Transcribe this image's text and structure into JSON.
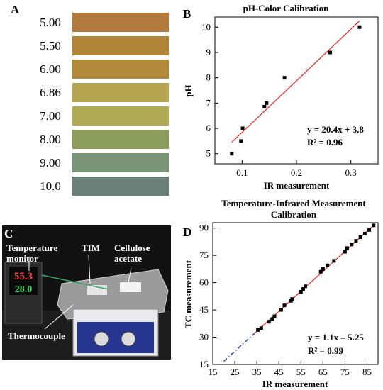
{
  "panel_letters": {
    "a": "A",
    "b": "B",
    "c": "C",
    "d": "D"
  },
  "swatches": {
    "labels": [
      "5.00",
      "5.50",
      "6.00",
      "6.86",
      "7.00",
      "8.00",
      "9.00",
      "10.0"
    ],
    "colors": [
      "#b07a3c",
      "#b08538",
      "#b38a3a",
      "#b5a551",
      "#b0aa56",
      "#8c9c5c",
      "#7a9577",
      "#6b7f79"
    ]
  },
  "photo_labels": {
    "temperature_monitor": "Temperature monitor",
    "tim": "TIM",
    "cellulose_acetate": "Cellulose acetate",
    "thermocouple": "Thermocouple",
    "display_top": "55.3",
    "display_bottom": "28.0"
  },
  "chart_data": [
    {
      "type": "scatter",
      "title": "pH-Color Calibration",
      "xlabel": "IR measurement",
      "ylabel": "pH",
      "xlim": [
        0.05,
        0.35
      ],
      "ylim": [
        4.6,
        10.4
      ],
      "x_ticks": [
        0.1,
        0.2,
        0.3
      ],
      "x_tick_labels": [
        "0.1",
        "0.2",
        "0.3"
      ],
      "y_ticks": [
        5,
        6,
        7,
        8,
        9,
        10
      ],
      "y_tick_labels": [
        "5",
        "6",
        "7",
        "8",
        "9",
        "10"
      ],
      "x": [
        0.081,
        0.098,
        0.101,
        0.141,
        0.145,
        0.178,
        0.262,
        0.316
      ],
      "y": [
        5.0,
        5.5,
        6.0,
        6.86,
        7.0,
        8.0,
        9.0,
        10.0
      ],
      "point_color": "#000000",
      "fit": {
        "slope": 20.4,
        "intercept": 3.8,
        "x_range": [
          0.081,
          0.316
        ],
        "color": "#e8322c"
      },
      "annotation": [
        "y = 20.4x + 3.8",
        "R² = 0.96"
      ],
      "grid": false
    },
    {
      "type": "scatter",
      "title": "Temperature-Infrared Measurement Calibration",
      "xlabel": "IR measurement",
      "ylabel": "TC measurement",
      "xlim": [
        15,
        90
      ],
      "ylim": [
        15,
        93
      ],
      "x_ticks": [
        15,
        25,
        35,
        45,
        55,
        65,
        75,
        85
      ],
      "x_tick_labels": [
        "15",
        "25",
        "35",
        "45",
        "55",
        "65",
        "75",
        "85"
      ],
      "y_ticks": [
        15,
        30,
        45,
        60,
        75,
        90
      ],
      "y_tick_labels": [
        "15",
        "30",
        "45",
        "60",
        "75",
        "90"
      ],
      "x": [
        35.5,
        37,
        40.5,
        42,
        43,
        46,
        47.5,
        50.5,
        51,
        55,
        56,
        57,
        64,
        65,
        67,
        70,
        75,
        76,
        78,
        80,
        82,
        84,
        86,
        88
      ],
      "y": [
        34,
        35,
        38.5,
        40,
        41.5,
        45,
        47.5,
        50,
        51,
        55,
        56.5,
        58,
        66,
        67.5,
        69.5,
        72,
        77,
        79,
        81,
        83,
        85,
        87,
        89,
        91.5
      ],
      "point_color": "#000000",
      "fit": {
        "slope": 1.1,
        "intercept": -5.25,
        "x_range": [
          34,
          88
        ],
        "color": "#e8322c"
      },
      "extrapolation": {
        "x_range": [
          20,
          34
        ],
        "color": "#2847c8",
        "style": "dash-dot"
      },
      "annotation": [
        "y = 1.1x – 5.25",
        "R² = 0.99"
      ],
      "grid": false
    }
  ]
}
